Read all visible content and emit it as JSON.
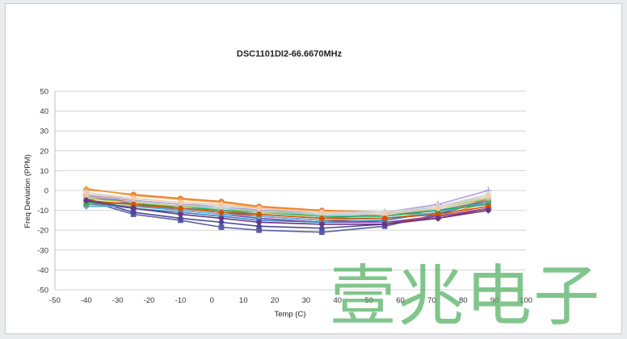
{
  "chart_data": {
    "type": "line",
    "title": "DSC1101DI2-66.6670MHz",
    "xlabel": "Temp (C)",
    "ylabel": "Freq Deviation (PPM)",
    "xlim": [
      -50,
      100
    ],
    "ylim": [
      -50,
      50
    ],
    "xticks": [
      -50,
      -40,
      -30,
      -20,
      -10,
      0,
      10,
      20,
      30,
      40,
      50,
      60,
      70,
      80,
      90,
      100
    ],
    "yticks": [
      -50,
      -40,
      -30,
      -20,
      -10,
      0,
      10,
      20,
      30,
      40,
      50
    ],
    "grid": "horizontal",
    "legend": "none",
    "x": [
      -40,
      -25,
      -10,
      3,
      15,
      35,
      55,
      72,
      88
    ],
    "series": [
      {
        "color": "#e8772e",
        "marker": "circle",
        "values": [
          0.5,
          -2,
          -4,
          -5.5,
          -8,
          -10,
          -11,
          -12,
          -4
        ]
      },
      {
        "color": "#f0a040",
        "marker": "triangle",
        "values": [
          1,
          -2.5,
          -4.5,
          -6,
          -8.5,
          -10.5,
          -11,
          -13,
          -6
        ]
      },
      {
        "color": "#5b5ea6",
        "marker": "square",
        "values": [
          -5,
          -12,
          -15,
          -18.5,
          -20,
          -21,
          -18,
          -12,
          -5
        ]
      },
      {
        "color": "#4a4a9c",
        "marker": "diamond",
        "values": [
          -4,
          -11,
          -14,
          -16,
          -18,
          -19,
          -17,
          -13,
          -9
        ]
      },
      {
        "color": "#c0392b",
        "marker": "circle",
        "values": [
          -3,
          -6,
          -9,
          -11,
          -13,
          -15,
          -16,
          -14,
          -9
        ]
      },
      {
        "color": "#8e44ad",
        "marker": "circle",
        "values": [
          -2,
          -7,
          -10,
          -12,
          -14,
          -16,
          -16,
          -13,
          -9
        ]
      },
      {
        "color": "#2e86c1",
        "marker": "square",
        "values": [
          -6,
          -9,
          -11,
          -13,
          -15,
          -16,
          -15,
          -11,
          -6
        ]
      },
      {
        "color": "#5dade2",
        "marker": "diamond",
        "values": [
          -8,
          -8,
          -10,
          -12,
          -13,
          -15,
          -14,
          -11,
          -6
        ]
      },
      {
        "color": "#7f8c8d",
        "marker": "square",
        "values": [
          -7,
          -8,
          -9,
          -10,
          -12,
          -14,
          -12,
          -10,
          -5
        ]
      },
      {
        "color": "#27ae60",
        "marker": "triangle",
        "values": [
          -6,
          -7,
          -8,
          -10,
          -11,
          -13,
          -13,
          -10,
          -7
        ]
      },
      {
        "color": "#9ccc65",
        "marker": "circle",
        "values": [
          -4,
          -6,
          -8,
          -9,
          -11,
          -12,
          -12,
          -9,
          -4
        ]
      },
      {
        "color": "#a9cce3",
        "marker": "cross",
        "values": [
          -3,
          -5,
          -7,
          -9,
          -10,
          -12,
          -12,
          -8,
          -3
        ]
      },
      {
        "color": "#b39ddb",
        "marker": "plus",
        "values": [
          -2,
          -5,
          -7,
          -8,
          -10,
          -11,
          -11,
          -7,
          0
        ]
      },
      {
        "color": "#cfd8dc",
        "marker": "circle",
        "values": [
          -1,
          -4,
          -6,
          -8,
          -9,
          -11,
          -11,
          -8,
          -2
        ]
      },
      {
        "color": "#f5cba7",
        "marker": "circle",
        "values": [
          -2,
          -4,
          -6,
          -7,
          -9,
          -11,
          -12,
          -9,
          -3
        ]
      },
      {
        "color": "#d35400",
        "marker": "circle",
        "values": [
          -5,
          -7,
          -9,
          -11,
          -12,
          -14,
          -14,
          -12,
          -8
        ]
      },
      {
        "color": "#6c3483",
        "marker": "diamond",
        "values": [
          -5,
          -9,
          -12,
          -14,
          -16,
          -17,
          -17,
          -14,
          -10
        ]
      }
    ]
  },
  "watermark": "壹兆电子"
}
